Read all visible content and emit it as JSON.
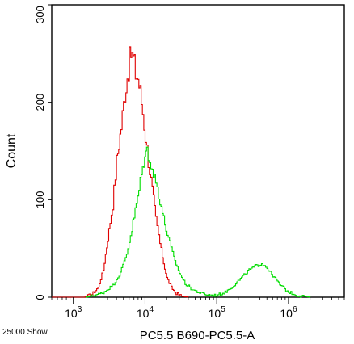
{
  "chart_data": {
    "type": "area",
    "xlabel": "PC5.5 B690-PC5.5-A",
    "ylabel": "Count",
    "x_scale": "log",
    "xlim": [
      500,
      6000000
    ],
    "ylim": [
      0,
      300
    ],
    "x_ticks": [
      {
        "value": 1000,
        "base": "10",
        "exp": "3"
      },
      {
        "value": 10000,
        "base": "10",
        "exp": "4"
      },
      {
        "value": 100000,
        "base": "10",
        "exp": "5"
      },
      {
        "value": 1000000,
        "base": "10",
        "exp": "6"
      }
    ],
    "y_ticks": [
      0,
      100,
      200,
      300
    ],
    "y_tick_labels": [
      "0",
      "100",
      "200",
      "300"
    ],
    "grid": false,
    "footer_note": "25000 Show",
    "series": [
      {
        "color": "#e00000",
        "x": [
          500,
          1400,
          1800,
          2200,
          2600,
          3000,
          3500,
          4000,
          4600,
          5200,
          5800,
          6300,
          6800,
          7300,
          7900,
          8500,
          9200,
          10000,
          11000,
          12500,
          14000,
          16000,
          18000,
          20000,
          23000,
          27000,
          32000,
          40000
        ],
        "y": [
          0,
          0,
          3,
          10,
          28,
          60,
          95,
          140,
          175,
          210,
          235,
          250,
          245,
          230,
          225,
          210,
          190,
          165,
          140,
          110,
          80,
          55,
          35,
          20,
          10,
          4,
          1,
          0
        ]
      },
      {
        "color": "#00dd00",
        "x": [
          1500,
          2500,
          3500,
          4500,
          5500,
          6500,
          7500,
          8500,
          9500,
          10500,
          11500,
          12500,
          14000,
          16000,
          18000,
          21000,
          25000,
          30000,
          36000,
          45000,
          60000,
          80000,
          100000,
          130000,
          170000,
          220000,
          280000,
          350000,
          420000,
          500000,
          600000,
          750000,
          950000,
          1300000,
          2000000
        ],
        "y": [
          0,
          4,
          12,
          25,
          45,
          70,
          95,
          118,
          140,
          150,
          145,
          130,
          118,
          100,
          80,
          60,
          40,
          25,
          14,
          8,
          4,
          2,
          2,
          5,
          12,
          20,
          28,
          32,
          35,
          30,
          22,
          13,
          6,
          2,
          0
        ]
      }
    ]
  }
}
